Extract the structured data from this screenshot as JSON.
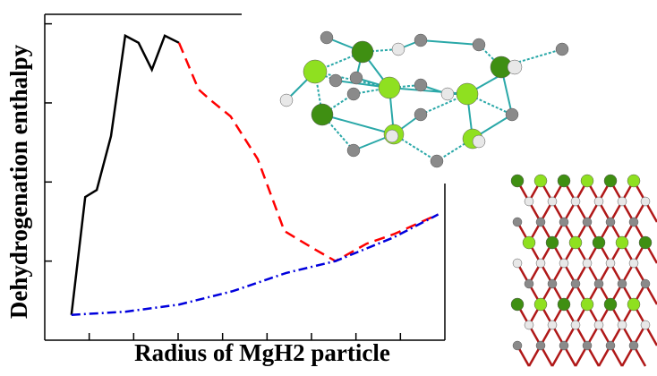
{
  "chart_data": {
    "type": "line",
    "xlabel": "Radius of MgH2 particle",
    "ylabel": "Dehydrogenation enthalpy",
    "xlim": [
      0,
      9
    ],
    "ylim": [
      0,
      4.12
    ],
    "xticks": [
      1,
      2,
      3,
      4,
      5,
      6,
      7,
      8
    ],
    "yticks": [
      1,
      2,
      3,
      4
    ],
    "series": [
      {
        "color": "#000000",
        "dash": "solid",
        "x": [
          0.6,
          0.91,
          1.17,
          1.49,
          1.81,
          2.11,
          2.41,
          2.7,
          3.02
        ],
        "values": [
          0.32,
          1.81,
          1.9,
          2.58,
          3.85,
          3.76,
          3.42,
          3.85,
          3.76
        ]
      },
      {
        "color": "#ff0000",
        "dash": "dashed",
        "x": [
          3.02,
          3.46,
          3.72,
          4.18,
          4.79,
          5.39,
          6.04,
          6.54,
          7.24,
          7.85,
          8.85
        ],
        "values": [
          3.76,
          3.17,
          3.04,
          2.83,
          2.29,
          1.38,
          1.16,
          1.0,
          1.22,
          1.34,
          1.59
        ]
      },
      {
        "color": "#0000dd",
        "dash": "dashdot",
        "x": [
          0.6,
          1.81,
          3.02,
          4.23,
          5.43,
          6.54,
          7.85,
          8.85
        ],
        "values": [
          0.32,
          0.36,
          0.45,
          0.62,
          0.85,
          1.0,
          1.3,
          1.59
        ]
      }
    ]
  }
}
